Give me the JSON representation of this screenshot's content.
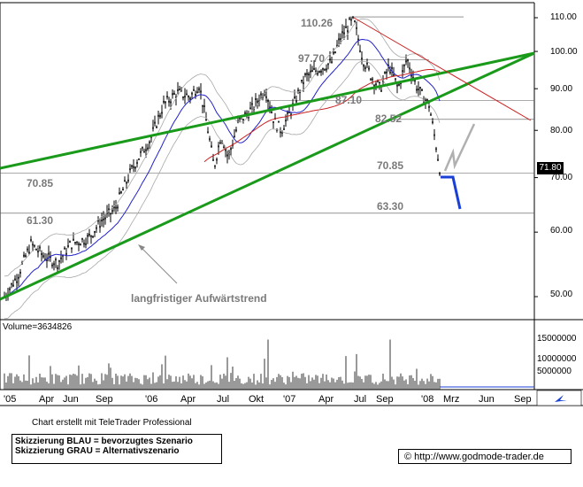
{
  "chart_data": {
    "type": "candlestick",
    "symbol_price": "71.80",
    "y_axis_ticks": [
      "110.00",
      "100.00",
      "90.00",
      "80.00",
      "70.00",
      "60.00",
      "50.00"
    ],
    "y_axis_scale": "log",
    "ylim": [
      46,
      113
    ],
    "x_axis_ticks": [
      "'05",
      "Apr",
      "Jun",
      "Sep",
      "'06",
      "Apr",
      "Jul",
      "Okt",
      "'07",
      "Apr",
      "Jul",
      "Sep",
      "'08",
      "Mrz",
      "Jun",
      "Sep"
    ],
    "price_levels": [
      {
        "label": "110.26",
        "value": 110.26
      },
      {
        "label": "97.70",
        "value": 97.7
      },
      {
        "label": "87.10",
        "value": 87.1
      },
      {
        "label": "82.52",
        "value": 82.52
      },
      {
        "label": "70.85",
        "value": 70.85
      },
      {
        "label": "70.85",
        "value": 70.85
      },
      {
        "label": "61.30",
        "value": 61.3
      },
      {
        "label": "63.30",
        "value": 63.3
      }
    ],
    "annotation": "langfristiger Aufwärtstrend",
    "volume_label": "Volume=3634826",
    "volume_ticks": [
      "15000000",
      "10000000",
      "5000000"
    ],
    "volume_ylim": [
      0,
      17000000
    ],
    "close_series_approx": [
      {
        "x": "'05",
        "y": 50
      },
      {
        "x": "Apr",
        "y": 57
      },
      {
        "x": "Jun",
        "y": 57
      },
      {
        "x": "Sep",
        "y": 63
      },
      {
        "x": "'06",
        "y": 80
      },
      {
        "x": "Apr",
        "y": 91
      },
      {
        "x": "Jul",
        "y": 79
      },
      {
        "x": "Okt",
        "y": 86
      },
      {
        "x": "'07",
        "y": 86
      },
      {
        "x": "Apr",
        "y": 92
      },
      {
        "x": "Jul",
        "y": 109
      },
      {
        "x": "Sep",
        "y": 92
      },
      {
        "x": "'08",
        "y": 71.8
      }
    ],
    "grid": false,
    "colors": {
      "trend_channel": "#1a9a1a",
      "resistance_line": "#cc2222",
      "ma_200": "#cc2222",
      "ma_50": "#2222cc",
      "bollinger": "#a8a8a8",
      "scenario_blue": "#1a3fd6",
      "scenario_grey": "#b0b0b0",
      "level_text": "#7a7a7a",
      "candles": "#000000"
    }
  },
  "footer": {
    "credit": "Chart erstellt mit TeleTrader Professional",
    "legend_blue": "Skizzierung BLAU = bevorzugtes Szenario",
    "legend_grey": "Skizzierung GRAU = Alternativszenario",
    "url": "http://www.godmode-trader.de",
    "copyright_symbol": "©"
  }
}
